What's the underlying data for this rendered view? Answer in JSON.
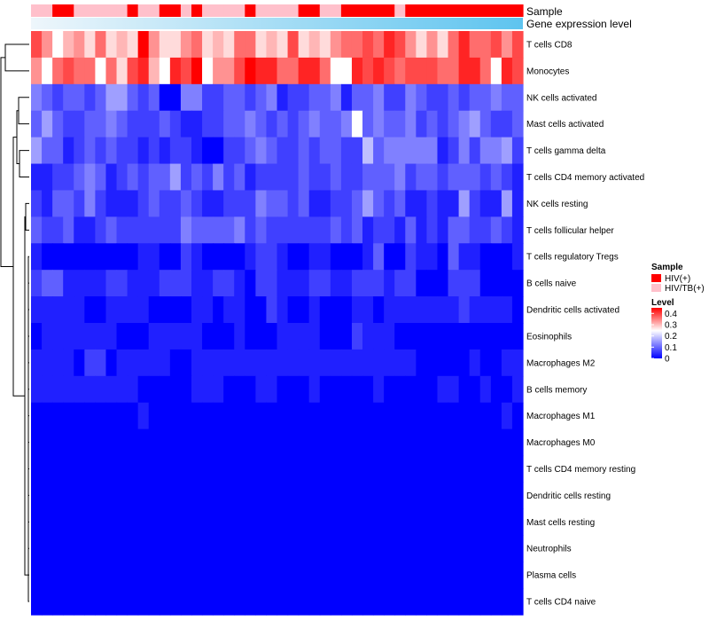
{
  "chart_data": {
    "type": "heatmap",
    "n_cols": 46,
    "rows": [
      "T cells CD8",
      "Monocytes",
      "NK cells activated",
      "Mast cells activated",
      "T cells gamma delta",
      "T cells CD4 memory activated",
      "NK cells resting",
      "T cells follicular helper",
      "T cells regulatory  Tregs",
      "B cells naive",
      "Dendritic cells activated",
      "Eosinophils",
      "Macrophages M2",
      "B cells memory",
      "Macrophages M1",
      "Macrophages M0",
      "T cells CD4 memory resting",
      "Dendritic cells resting",
      "Mast cells resting",
      "Neutrophils",
      "Plasma cells",
      "T cells CD4 naive"
    ],
    "annotations": [
      {
        "name": "Sample",
        "values": "LLHHLLLLLHLLHHLHLLLLHLLLLHHLLHHHHHLHHHHHHHHHHH"
      },
      {
        "name": "Gene expression level",
        "gradient": true
      }
    ],
    "matrix_codes": [
      "cehfegdgfgaeggedgfgddgfgcgfgeddcdbcegegdbddcec",
      "ehdcddhdgcbfhbcaheecabbddbbdhhbcbcdcccddbbdhbc",
      "lmnmmnmkkmnmppllnnmmnmlonnmmlommlnnlmnnmnmmlmm",
      "mkmnnmmlmnnnmnoonnmmlmnmnmlmmlhmlmmlnmnmlkmnnm",
      "kmmonmnmnnononnoppnnmlmnnmnmmnnjmlllllonlnllkn",
      "oonnmlmonmnmmknmnlnmonnnnmnnmnnmmmlnmmnmmmnmno",
      "nommnlnooonmnnmnoonnnlmmnmoonnmkmnmoonooknooko",
      "mnnmoonmnnnnnnlmmmmlnmnnnnnnmnmonnomonommnnmno",
      "opppppppppooppnopppponnoppoopppomppnoopmoopppo",
      "nmmoooonnooonnnoonnopnnooonnoonnnonnpppnnnpppp",
      "oooooppooooppppoopooppnoppopppoopooooooonoooop",
      "pooooooopppooooopppopppoooopppnooopppppppppppp",
      "oooopnnpoooooppooooooooooooooooooooopppppoppoo",
      "oooooooooopppppooopppoopppopppppopppppooppoppo",
      "ppppppppppopppppppppppppppppppppppppppppppppop",
      "pppppppppppppppppppppppppppppppppppppppppppppp",
      "pppppppppppppppppppppppppppppppppppppppppppppp",
      "pppppppppppppppppppppppppppppppppppppppppppppp",
      "pppppppppppppppppppppppppppppppppppppppppppppp",
      "pppppppppppppppppppppppppppppppppppppppppppppp",
      "pppppppppppppppppppppppppppppppppppppppppppppp",
      "pppppppppppppppppppppppppppppppppppppppppppppp"
    ],
    "code_scale": "a = 0.40 (red) ... h = 0.22 (white) ... p = 0.00 (blue)",
    "legend_sample": {
      "title": "Sample",
      "entries": [
        {
          "code": "H",
          "label": "HIV(+)",
          "color": "#ff0000"
        },
        {
          "code": "L",
          "label": "HIV/TB(+)",
          "color": "#ffc0cb"
        }
      ]
    },
    "legend_level": {
      "title": "Level",
      "ticks": [
        0.4,
        0.3,
        0.2,
        0.1,
        0
      ],
      "tick_labels": [
        "0.4",
        "0.3",
        "0.2",
        "0.1",
        "0"
      ],
      "colors": [
        "#0000ff",
        "#ffffff",
        "#ff0000"
      ]
    }
  }
}
